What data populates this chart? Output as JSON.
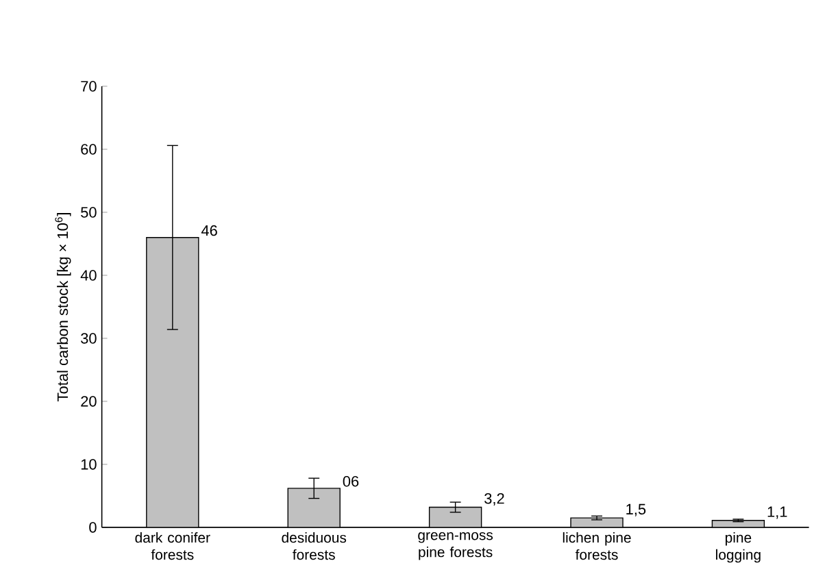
{
  "chart_data": {
    "type": "bar",
    "ylabel": "Total carbon stock [kg × 10$^{6}$]",
    "categories": [
      "dark conifer forests",
      "desiduous forests",
      "green-moss pine forests",
      "lichen pine forests",
      "pine logging"
    ],
    "values": [
      46,
      6.2,
      3.2,
      1.5,
      1.1
    ],
    "errors": [
      14.6,
      1.6,
      0.8,
      0.3,
      0.2
    ],
    "value_labels": [
      "46",
      "06",
      "3,2",
      "1,5",
      "1,1"
    ],
    "color": "#c0c0c0",
    "ylim": [
      0,
      70
    ],
    "yticks": [
      0,
      10,
      20,
      30,
      40,
      50,
      60,
      70
    ],
    "grid": false
  }
}
